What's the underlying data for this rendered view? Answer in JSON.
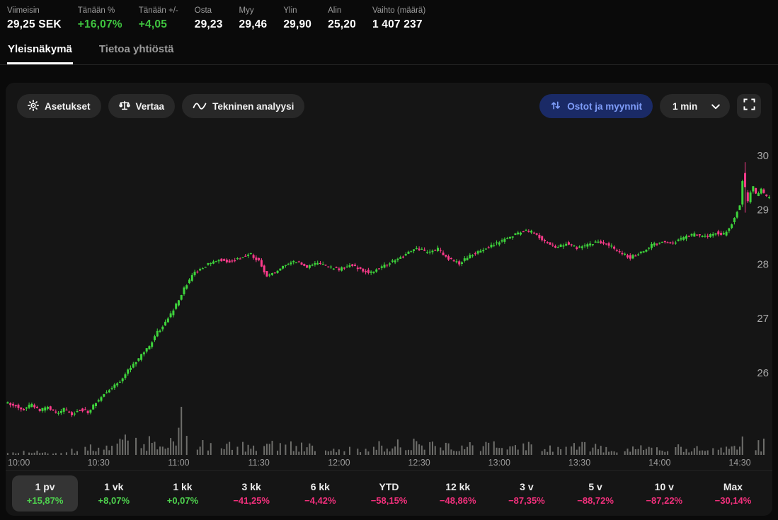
{
  "colors": {
    "positive_text": "#3fc43f",
    "positive_range": "#4ed34e",
    "negative_text": "#f2307c",
    "candle_up": "#3ed43c",
    "candle_down": "#fb3b8b",
    "volume": "#787874",
    "axis_text": "#a8a8a8",
    "accent_blue": "#7e9cf8"
  },
  "header": {
    "stats": [
      {
        "label": "Viimeisin",
        "value": "29,25 SEK",
        "tone": "neutral"
      },
      {
        "label": "Tänään %",
        "value": "+16,07%",
        "tone": "positive"
      },
      {
        "label": "Tänään +/-",
        "value": "+4,05",
        "tone": "positive"
      },
      {
        "label": "Osta",
        "value": "29,23",
        "tone": "neutral"
      },
      {
        "label": "Myy",
        "value": "29,46",
        "tone": "neutral"
      },
      {
        "label": "Ylin",
        "value": "29,90",
        "tone": "neutral"
      },
      {
        "label": "Alin",
        "value": "25,20",
        "tone": "neutral"
      },
      {
        "label": "Vaihto (määrä)",
        "value": "1 407 237",
        "tone": "neutral"
      }
    ]
  },
  "tabs": [
    {
      "label": "Yleisnäkymä",
      "active": true
    },
    {
      "label": "Tietoa yhtiöstä",
      "active": false
    }
  ],
  "toolbar": {
    "settings_label": "Asetukset",
    "compare_label": "Vertaa",
    "technical_label": "Tekninen analyysi",
    "orders_label": "Ostot ja myynnit",
    "interval_value": "1 min"
  },
  "chart_data": {
    "type": "candlestick",
    "interval_minutes": 1,
    "title": "",
    "ylabel": "SEK",
    "y_ticks": [
      26,
      27,
      28,
      29,
      30
    ],
    "y_range": [
      25.0,
      30.4
    ],
    "x_ticks": [
      "10:00",
      "10:30",
      "11:00",
      "11:30",
      "12:00",
      "12:30",
      "13:00",
      "13:30",
      "14:00",
      "14:30"
    ],
    "session_open_time": "10:00",
    "last_price": 29.25,
    "session_high": 29.9,
    "session_low": 25.2,
    "price_keypoints": [
      [
        -4,
        25.45
      ],
      [
        0,
        25.4
      ],
      [
        3,
        25.32
      ],
      [
        6,
        25.42
      ],
      [
        9,
        25.3
      ],
      [
        12,
        25.38
      ],
      [
        15,
        25.25
      ],
      [
        18,
        25.33
      ],
      [
        21,
        25.22
      ],
      [
        24,
        25.32
      ],
      [
        27,
        25.28
      ],
      [
        30,
        25.45
      ],
      [
        33,
        25.6
      ],
      [
        36,
        25.72
      ],
      [
        39,
        25.85
      ],
      [
        42,
        26.05
      ],
      [
        45,
        26.2
      ],
      [
        47,
        26.32
      ],
      [
        50,
        26.5
      ],
      [
        53,
        26.75
      ],
      [
        55,
        26.85
      ],
      [
        57,
        27.0
      ],
      [
        60,
        27.25
      ],
      [
        63,
        27.55
      ],
      [
        66,
        27.8
      ],
      [
        69,
        27.92
      ],
      [
        72,
        28.0
      ],
      [
        76,
        28.08
      ],
      [
        80,
        28.05
      ],
      [
        84,
        28.12
      ],
      [
        88,
        28.18
      ],
      [
        91,
        28.05
      ],
      [
        94,
        27.78
      ],
      [
        97,
        27.85
      ],
      [
        101,
        28.0
      ],
      [
        105,
        28.05
      ],
      [
        109,
        27.95
      ],
      [
        113,
        28.02
      ],
      [
        117,
        27.95
      ],
      [
        121,
        27.9
      ],
      [
        125,
        28.0
      ],
      [
        129,
        27.9
      ],
      [
        133,
        27.85
      ],
      [
        137,
        27.95
      ],
      [
        141,
        28.05
      ],
      [
        145,
        28.15
      ],
      [
        150,
        28.3
      ],
      [
        154,
        28.22
      ],
      [
        158,
        28.28
      ],
      [
        162,
        28.1
      ],
      [
        166,
        28.02
      ],
      [
        170,
        28.15
      ],
      [
        174,
        28.25
      ],
      [
        178,
        28.35
      ],
      [
        182,
        28.42
      ],
      [
        186,
        28.52
      ],
      [
        190,
        28.62
      ],
      [
        194,
        28.58
      ],
      [
        198,
        28.42
      ],
      [
        202,
        28.32
      ],
      [
        206,
        28.38
      ],
      [
        210,
        28.3
      ],
      [
        214,
        28.35
      ],
      [
        218,
        28.42
      ],
      [
        222,
        28.35
      ],
      [
        226,
        28.22
      ],
      [
        230,
        28.12
      ],
      [
        234,
        28.22
      ],
      [
        238,
        28.35
      ],
      [
        242,
        28.42
      ],
      [
        246,
        28.4
      ],
      [
        250,
        28.48
      ],
      [
        254,
        28.55
      ],
      [
        258,
        28.5
      ],
      [
        262,
        28.58
      ],
      [
        265,
        28.55
      ],
      [
        267,
        28.65
      ],
      [
        269,
        28.85
      ],
      [
        271,
        29.1
      ],
      [
        272,
        29.55
      ],
      [
        273,
        29.3
      ],
      [
        274,
        29.15
      ],
      [
        275,
        29.32
      ],
      [
        276,
        29.42
      ],
      [
        277,
        29.28
      ],
      [
        278,
        29.32
      ],
      [
        279,
        29.38
      ],
      [
        280,
        29.3
      ],
      [
        281,
        29.25
      ]
    ],
    "candle_overrides": [
      {
        "t": 272,
        "o": 29.68,
        "h": 29.88,
        "l": 28.95,
        "c": 29.42
      }
    ],
    "volume_envelope": [
      [
        -4,
        7
      ],
      [
        0,
        8
      ],
      [
        10,
        6
      ],
      [
        20,
        9
      ],
      [
        28,
        18
      ],
      [
        34,
        26
      ],
      [
        40,
        30
      ],
      [
        46,
        26
      ],
      [
        52,
        30
      ],
      [
        58,
        34
      ],
      [
        61,
        68
      ],
      [
        64,
        30
      ],
      [
        70,
        26
      ],
      [
        76,
        20
      ],
      [
        82,
        22
      ],
      [
        88,
        18
      ],
      [
        95,
        22
      ],
      [
        102,
        24
      ],
      [
        108,
        18
      ],
      [
        115,
        14
      ],
      [
        122,
        18
      ],
      [
        128,
        14
      ],
      [
        135,
        20
      ],
      [
        142,
        22
      ],
      [
        150,
        24
      ],
      [
        158,
        20
      ],
      [
        165,
        22
      ],
      [
        172,
        18
      ],
      [
        180,
        26
      ],
      [
        188,
        24
      ],
      [
        196,
        18
      ],
      [
        204,
        16
      ],
      [
        210,
        20
      ],
      [
        218,
        16
      ],
      [
        226,
        14
      ],
      [
        234,
        18
      ],
      [
        242,
        20
      ],
      [
        250,
        14
      ],
      [
        258,
        12
      ],
      [
        265,
        16
      ],
      [
        269,
        24
      ],
      [
        272,
        58
      ],
      [
        275,
        30
      ],
      [
        278,
        22
      ],
      [
        281,
        26
      ]
    ],
    "volume_overrides": [
      {
        "t": 61,
        "h": 68
      },
      {
        "t": 272,
        "h": 58
      }
    ],
    "t_start": -4,
    "t_end": 281
  },
  "ranges": [
    {
      "label": "1 pv",
      "change": "+15,87%",
      "positive": true,
      "selected": true
    },
    {
      "label": "1 vk",
      "change": "+8,07%",
      "positive": true,
      "selected": false
    },
    {
      "label": "1 kk",
      "change": "+0,07%",
      "positive": true,
      "selected": false
    },
    {
      "label": "3 kk",
      "change": "−41,25%",
      "positive": false,
      "selected": false
    },
    {
      "label": "6 kk",
      "change": "−4,42%",
      "positive": false,
      "selected": false
    },
    {
      "label": "YTD",
      "change": "−58,15%",
      "positive": false,
      "selected": false
    },
    {
      "label": "12 kk",
      "change": "−48,86%",
      "positive": false,
      "selected": false
    },
    {
      "label": "3 v",
      "change": "−87,35%",
      "positive": false,
      "selected": false
    },
    {
      "label": "5 v",
      "change": "−88,72%",
      "positive": false,
      "selected": false
    },
    {
      "label": "10 v",
      "change": "−87,22%",
      "positive": false,
      "selected": false
    },
    {
      "label": "Max",
      "change": "−30,14%",
      "positive": false,
      "selected": false
    }
  ]
}
